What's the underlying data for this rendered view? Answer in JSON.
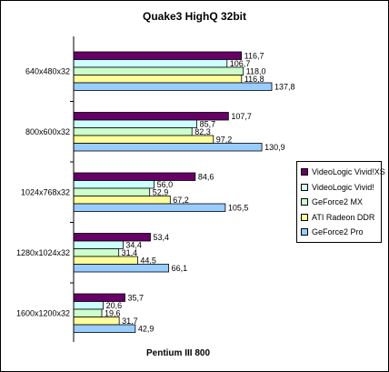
{
  "chart_data": {
    "type": "bar",
    "orientation": "horizontal",
    "title": "Quake3 HighQ 32bit",
    "xlabel": "Pentium III 800",
    "categories": [
      "640x480x32",
      "800x600x32",
      "1024x768x32",
      "1280x1024x32",
      "1600x1200x32"
    ],
    "series": [
      {
        "name": "VideoLogic Vivid!XS",
        "color": "#660066",
        "values": [
          116.7,
          107.7,
          84.6,
          53.4,
          35.7
        ],
        "labels": [
          "116,7",
          "107,7",
          "84,6",
          "53,4",
          "35,7"
        ]
      },
      {
        "name": "VideoLogic Vivid!",
        "color": "#ccffff",
        "values": [
          106.7,
          85.7,
          56.0,
          34.4,
          20.6
        ],
        "labels": [
          "106,7",
          "85,7",
          "56,0",
          "34,4",
          "20,6"
        ]
      },
      {
        "name": "GeForce2 MX",
        "color": "#ccffcc",
        "values": [
          118.0,
          82.3,
          52.9,
          31.4,
          19.6
        ],
        "labels": [
          "118,0",
          "82,3",
          "52,9",
          "31,4",
          "19,6"
        ]
      },
      {
        "name": "ATI Radeon DDR",
        "color": "#ffff99",
        "values": [
          116.8,
          97.2,
          67.2,
          44.5,
          31.7
        ],
        "labels": [
          "116,8",
          "97,2",
          "67,2",
          "44,5",
          "31,7"
        ]
      },
      {
        "name": "GeForce2 Pro",
        "color": "#99ccff",
        "values": [
          137.8,
          130.9,
          105.5,
          66.1,
          42.9
        ],
        "labels": [
          "137,8",
          "130,9",
          "105,5",
          "66,1",
          "42,9"
        ]
      }
    ],
    "xlim": [
      0,
      160
    ],
    "grid": false,
    "legend_position": "right"
  }
}
